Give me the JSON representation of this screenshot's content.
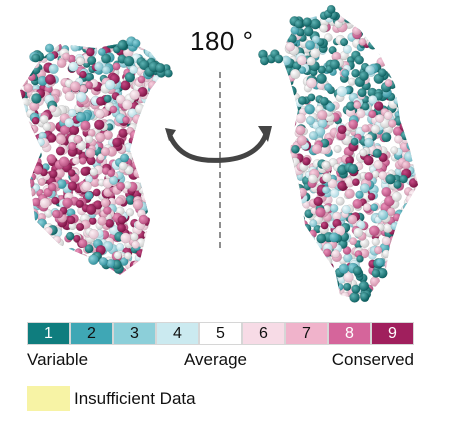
{
  "rotation_label": "180 °",
  "colors": {
    "teal_dark": "#0f7d7e",
    "teal": "#3fa7b5",
    "teal_light": "#8ccfd9",
    "teal_pale": "#cbeaf0",
    "white": "#ffffff",
    "pink_pale": "#f7dbe6",
    "pink_light": "#f0b3cb",
    "pink": "#d5659b",
    "magenta": "#a01f5d",
    "insufficient_yellow": "#f7f3a5"
  },
  "legend": {
    "grades": [
      {
        "label": "1",
        "color": "#0f7d7e",
        "text_color": "#ffffff"
      },
      {
        "label": "2",
        "color": "#3fa7b5",
        "text_color": "#111111"
      },
      {
        "label": "3",
        "color": "#8ccfd9",
        "text_color": "#111111"
      },
      {
        "label": "4",
        "color": "#cbeaf0",
        "text_color": "#111111"
      },
      {
        "label": "5",
        "color": "#ffffff",
        "text_color": "#111111"
      },
      {
        "label": "6",
        "color": "#f7dbe6",
        "text_color": "#111111"
      },
      {
        "label": "7",
        "color": "#f0b3cb",
        "text_color": "#111111"
      },
      {
        "label": "8",
        "color": "#d5659b",
        "text_color": "#ffffff"
      },
      {
        "label": "9",
        "color": "#a01f5d",
        "text_color": "#ffffff"
      }
    ],
    "variable_label": "Variable",
    "average_label": "Average",
    "conserved_label": "Conserved",
    "insufficient_label": "Insufficient Data",
    "insufficient_color": "#f7f3a5"
  }
}
